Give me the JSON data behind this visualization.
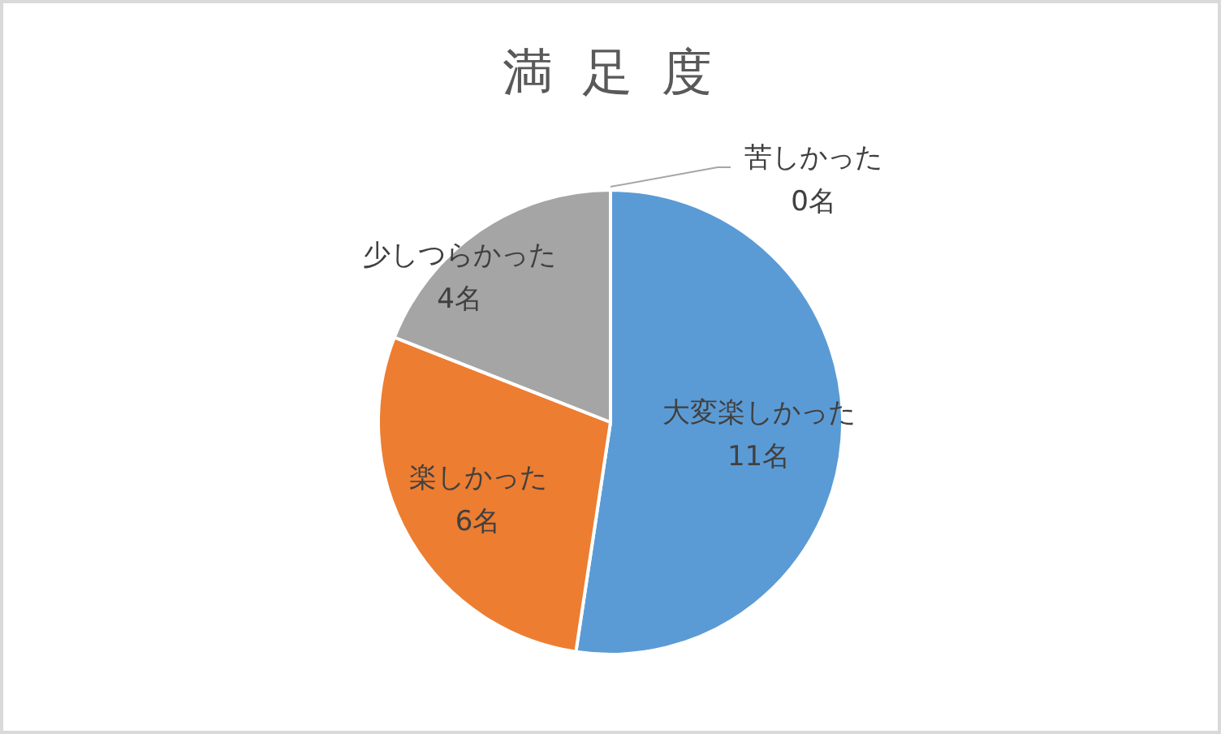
{
  "chart_data": {
    "type": "pie",
    "title": "満 足 度",
    "categories": [
      "大変楽しかった",
      "楽しかった",
      "少しつらかった",
      "苦しかった"
    ],
    "values": [
      11,
      6,
      4,
      0
    ],
    "colors": [
      "#5b9bd5",
      "#ed7d31",
      "#a5a5a5",
      null
    ],
    "value_labels": [
      "11名",
      "6名",
      "4名",
      "0名"
    ]
  }
}
